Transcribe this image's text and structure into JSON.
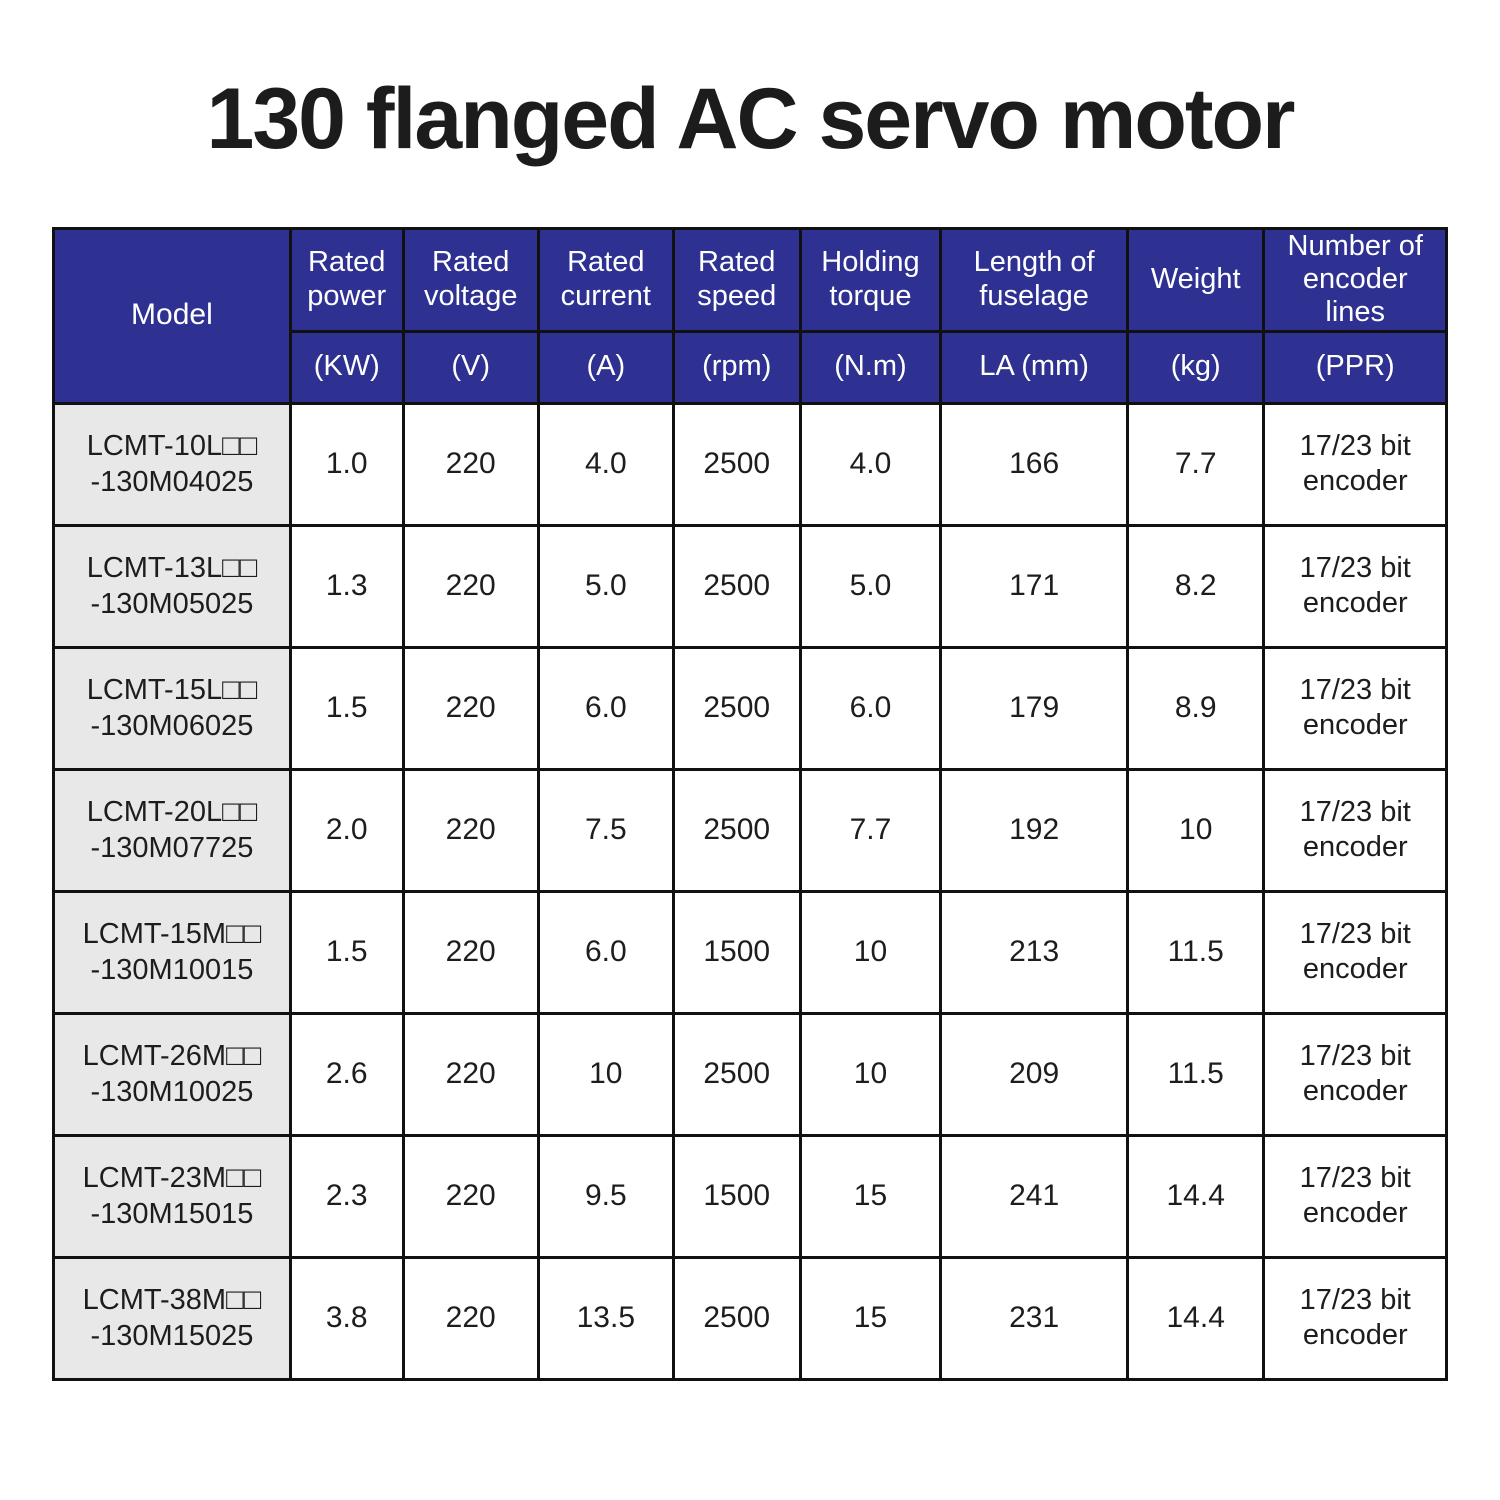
{
  "page": {
    "title": "130 flanged AC servo motor"
  },
  "colors": {
    "header_bg": "#2E3192",
    "header_text": "#FFFFFF",
    "model_col_bg": "#E8E8E8",
    "border": "#111111",
    "body_text": "#1D1D1D"
  },
  "table": {
    "header": {
      "model_label": "Model",
      "columns": [
        {
          "name": "Rated power",
          "unit": "(KW)"
        },
        {
          "name": "Rated voltage",
          "unit": "(V)"
        },
        {
          "name": "Rated current",
          "unit": "(A)"
        },
        {
          "name": "Rated speed",
          "unit": "(rpm)"
        },
        {
          "name": "Holding torque",
          "unit": "(N.m)"
        },
        {
          "name": "Length of fuselage",
          "unit": "LA (mm)"
        },
        {
          "name": "Weight",
          "unit": "(kg)"
        },
        {
          "name": "Number of encoder lines",
          "unit": "(PPR)"
        }
      ]
    },
    "rows": [
      {
        "model_line1": "LCMT-10L□□",
        "model_line2": "-130M04025",
        "values": [
          "1.0",
          "220",
          "4.0",
          "2500",
          "4.0",
          "166",
          "7.7"
        ],
        "encoder": "17/23 bit encoder"
      },
      {
        "model_line1": "LCMT-13L□□",
        "model_line2": "-130M05025",
        "values": [
          "1.3",
          "220",
          "5.0",
          "2500",
          "5.0",
          "171",
          "8.2"
        ],
        "encoder": "17/23 bit encoder"
      },
      {
        "model_line1": "LCMT-15L□□",
        "model_line2": "-130M06025",
        "values": [
          "1.5",
          "220",
          "6.0",
          "2500",
          "6.0",
          "179",
          "8.9"
        ],
        "encoder": "17/23 bit encoder"
      },
      {
        "model_line1": "LCMT-20L□□",
        "model_line2": "-130M07725",
        "values": [
          "2.0",
          "220",
          "7.5",
          "2500",
          "7.7",
          "192",
          "10"
        ],
        "encoder": "17/23 bit encoder"
      },
      {
        "model_line1": "LCMT-15M□□",
        "model_line2": "-130M10015",
        "values": [
          "1.5",
          "220",
          "6.0",
          "1500",
          "10",
          "213",
          "11.5"
        ],
        "encoder": "17/23 bit encoder"
      },
      {
        "model_line1": "LCMT-26M□□",
        "model_line2": "-130M10025",
        "values": [
          "2.6",
          "220",
          "10",
          "2500",
          "10",
          "209",
          "11.5"
        ],
        "encoder": "17/23 bit encoder"
      },
      {
        "model_line1": "LCMT-23M□□",
        "model_line2": "-130M15015",
        "values": [
          "2.3",
          "220",
          "9.5",
          "1500",
          "15",
          "241",
          "14.4"
        ],
        "encoder": "17/23 bit encoder"
      },
      {
        "model_line1": "LCMT-38M□□",
        "model_line2": "-130M15025",
        "values": [
          "3.8",
          "220",
          "13.5",
          "2500",
          "15",
          "231",
          "14.4"
        ],
        "encoder": "17/23 bit encoder"
      }
    ]
  }
}
